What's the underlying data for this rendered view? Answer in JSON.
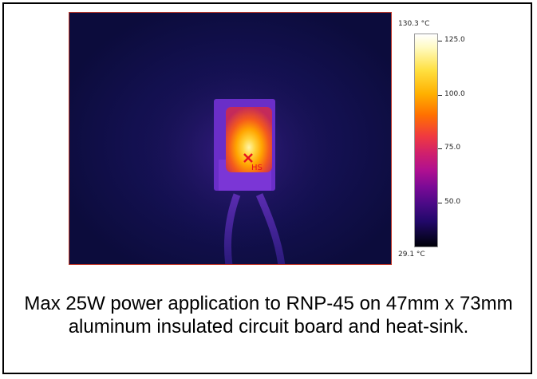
{
  "thermal_image": {
    "marker_label": "HS",
    "scale_max": "130.3 °C",
    "scale_min": "29.1 °C",
    "ticks": [
      "125.0",
      "100.0",
      "75.0",
      "50.0"
    ],
    "marker_color": "#e8101e"
  },
  "caption": "Max 25W power application to RNP-45 on 47mm x 73mm aluminum insulated circuit board and heat-sink."
}
